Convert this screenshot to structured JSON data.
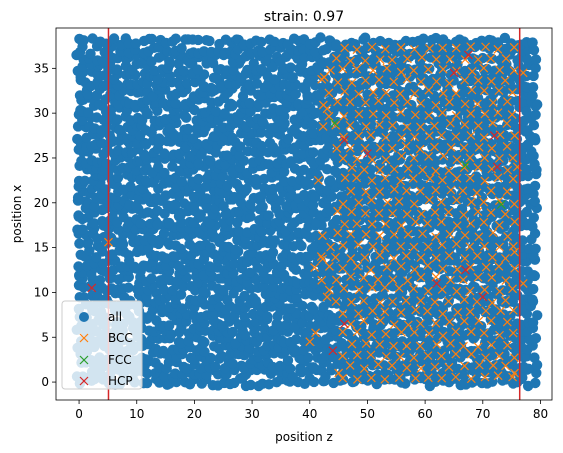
{
  "chart_data": {
    "type": "scatter",
    "title": "strain: 0.97",
    "xlabel": "position z",
    "ylabel": "position x",
    "xlim": [
      -4,
      82
    ],
    "ylim": [
      -2,
      39.5
    ],
    "xticks": [
      0,
      10,
      20,
      30,
      40,
      50,
      60,
      70,
      80
    ],
    "yticks": [
      0,
      5,
      10,
      15,
      20,
      25,
      30,
      35
    ],
    "legend": {
      "placement": "lower-left",
      "entries": [
        "all",
        "BCC",
        "FCC",
        "HCP"
      ]
    },
    "vlines": {
      "color": "#d62728",
      "x": [
        5.1,
        76.4
      ]
    },
    "series": [
      {
        "name": "all",
        "marker": "circle",
        "color": "#1f77b4",
        "description_region": {
          "x": [
            0,
            79
          ],
          "y": [
            0,
            38
          ]
        }
      },
      {
        "name": "BCC",
        "marker": "x",
        "color": "#ff7f0e",
        "lattice": {
          "x_range": [
            41,
            78
          ],
          "y_range": [
            0.5,
            38
          ],
          "spacing": 2.45
        },
        "points": [
          [
            5.1,
            15.6
          ],
          [
            42.5,
            34.0
          ],
          [
            43.0,
            30.5
          ],
          [
            41.5,
            22.5
          ],
          [
            42.0,
            14.0
          ],
          [
            43.0,
            9.5
          ],
          [
            41.0,
            5.5
          ],
          [
            40.0,
            4.5
          ],
          [
            45.0,
            1.0
          ],
          [
            77.0,
            34.5
          ],
          [
            76.0,
            24.0
          ],
          [
            75.5,
            14.5
          ],
          [
            77.0,
            11.0
          ],
          [
            75.5,
            1.0
          ]
        ]
      },
      {
        "name": "FCC",
        "marker": "x",
        "color": "#2ca02c",
        "points": [
          [
            44.3,
            28.9
          ],
          [
            73.2,
            19.8
          ],
          [
            67.0,
            24.2
          ]
        ]
      },
      {
        "name": "HCP",
        "marker": "x",
        "color": "#d62728",
        "points": [
          [
            2.2,
            10.5
          ],
          [
            65.0,
            34.5
          ],
          [
            67.5,
            36.5
          ],
          [
            46.0,
            27.0
          ],
          [
            50.0,
            25.5
          ],
          [
            72.0,
            27.5
          ],
          [
            72.5,
            24.0
          ],
          [
            67.0,
            12.5
          ],
          [
            62.0,
            11.0
          ],
          [
            70.0,
            9.5
          ],
          [
            46.0,
            6.5
          ],
          [
            44.0,
            3.5
          ]
        ]
      }
    ]
  },
  "colors": {
    "all": "#1f77b4",
    "bcc": "#ff7f0e",
    "fcc": "#2ca02c",
    "hcp": "#d62728",
    "axis": "#000000"
  }
}
